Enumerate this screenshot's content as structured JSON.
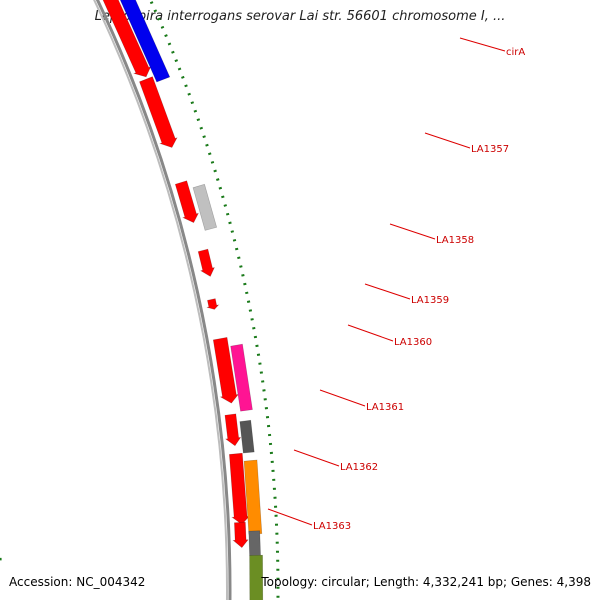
{
  "title": "Leptospira interrogans serovar Lai str. 56601 chromosome I, ...",
  "footer": {
    "accession": "Accession: NC_004342",
    "summary": "Topology: circular; Length: 4,332,241 bp; Genes: 4,398"
  },
  "colors": {
    "backbone": "#888888",
    "tick": "#1a7a1a",
    "label": "#cc0000",
    "leader": "#dd0000"
  },
  "ticks": [
    "1350 kbp",
    "1351 kbp",
    "1352 kbp",
    "1353 kbp",
    "1354 kbp",
    "1355 kbp",
    "1356 kbp",
    "1357 kbp",
    "1358 kbp",
    "1359 kbp"
  ],
  "genes": [
    {
      "label": "cirA",
      "color": "#ff0000",
      "strand": "forward"
    },
    {
      "label": "cirA-feature",
      "color": "#0000ee",
      "strand": "feature"
    },
    {
      "label": "LA1357",
      "color": "#ff0000",
      "strand": "forward"
    },
    {
      "label": "LA1358",
      "color": "#ff0000",
      "strand": "forward"
    },
    {
      "label": "LA1358-feature",
      "color": "#c0c0c0",
      "strand": "feature"
    },
    {
      "label": "LA1359",
      "color": "#ff0000",
      "strand": "forward"
    },
    {
      "label": "LA1360",
      "color": "#ff0000",
      "strand": "forward"
    },
    {
      "label": "LA1361",
      "color": "#ff0000",
      "strand": "forward"
    },
    {
      "label": "LA1361-feature",
      "color": "#ff1493",
      "strand": "feature"
    },
    {
      "label": "LA1362",
      "color": "#ff0000",
      "strand": "forward"
    },
    {
      "label": "LA1362-feature",
      "color": "#555555",
      "strand": "feature"
    },
    {
      "label": "LA1363",
      "color": "#ff0000",
      "strand": "forward"
    },
    {
      "label": "LA1363-feature",
      "color": "#ff8c00",
      "strand": "feature"
    },
    {
      "label": "next-gene",
      "color": "#ff0000",
      "strand": "forward"
    },
    {
      "label": "next-feature-grey",
      "color": "#666666",
      "strand": "feature"
    },
    {
      "label": "next-feature-olive",
      "color": "#6b8e23",
      "strand": "feature"
    }
  ],
  "shown_labels": [
    "cirA",
    "LA1357",
    "LA1358",
    "LA1359",
    "LA1360",
    "LA1361",
    "LA1362",
    "LA1363"
  ]
}
